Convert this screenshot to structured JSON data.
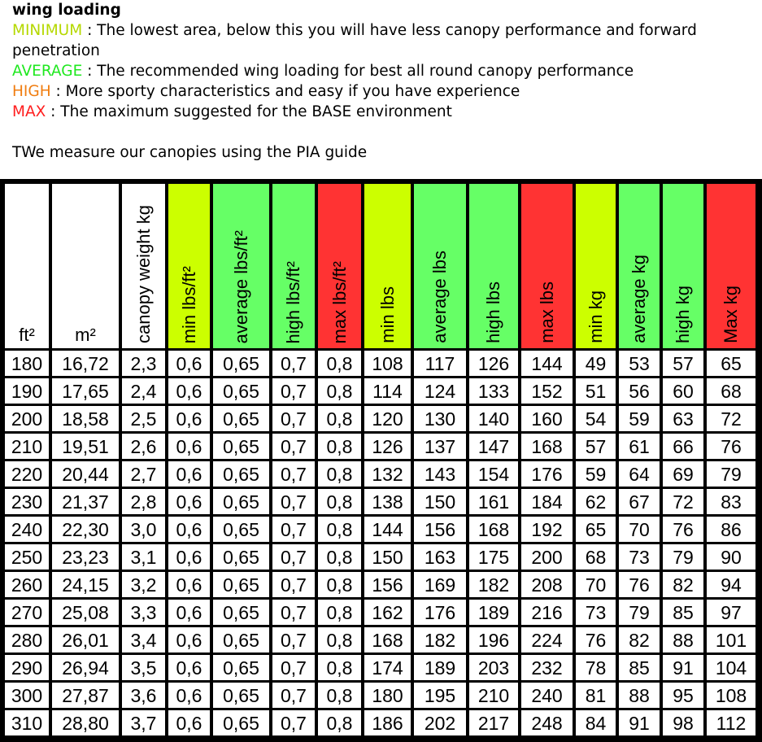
{
  "header": {
    "title": "wing loading",
    "lines": [
      {
        "label": "MINIMUM",
        "text": " : The lowest area, below this you will have less canopy performance and forward penetration"
      },
      {
        "label": "AVERAGE",
        "text": " : The recommended wing loading for best all round canopy performance"
      },
      {
        "label": "HIGH",
        "text": " : More sporty characteristics and easy if you have experience"
      },
      {
        "label": "MAX",
        "text": " : The maximum suggested for the BASE environment"
      }
    ],
    "note": "TWe measure our canopies using the PIA guide"
  },
  "colors": {
    "minimum": "#ccff00",
    "average": "#66ff66",
    "high": "#66ff66",
    "max": "#ff3333",
    "label_minimum": "#b5d800",
    "label_average": "#1fe81f",
    "label_high": "#f07d10",
    "label_max": "#ff1e1e"
  },
  "chart_data": {
    "type": "table",
    "columns": [
      {
        "label": "ft²",
        "bg": "white",
        "orient": "h"
      },
      {
        "label": "m²",
        "bg": "white",
        "orient": "h"
      },
      {
        "label": "canopy weight kg",
        "bg": "white",
        "orient": "v"
      },
      {
        "label": "min lbs/ft²",
        "bg": "yellow",
        "orient": "v"
      },
      {
        "label": "average lbs/ft²",
        "bg": "green",
        "orient": "v"
      },
      {
        "label": "high lbs/ft²",
        "bg": "green",
        "orient": "v"
      },
      {
        "label": "max lbs/ft²",
        "bg": "red",
        "orient": "v"
      },
      {
        "label": "min lbs",
        "bg": "yellow",
        "orient": "v"
      },
      {
        "label": "average lbs",
        "bg": "green",
        "orient": "v"
      },
      {
        "label": "high lbs",
        "bg": "green",
        "orient": "v"
      },
      {
        "label": "max lbs",
        "bg": "red",
        "orient": "v"
      },
      {
        "label": "min kg",
        "bg": "yellow",
        "orient": "v"
      },
      {
        "label": "average kg",
        "bg": "green",
        "orient": "v"
      },
      {
        "label": "high kg",
        "bg": "green",
        "orient": "v"
      },
      {
        "label": "Max kg",
        "bg": "red",
        "orient": "v"
      }
    ],
    "rows": [
      [
        "180",
        "16,72",
        "2,3",
        "0,6",
        "0,65",
        "0,7",
        "0,8",
        "108",
        "117",
        "126",
        "144",
        "49",
        "53",
        "57",
        "65"
      ],
      [
        "190",
        "17,65",
        "2,4",
        "0,6",
        "0,65",
        "0,7",
        "0,8",
        "114",
        "124",
        "133",
        "152",
        "51",
        "56",
        "60",
        "68"
      ],
      [
        "200",
        "18,58",
        "2,5",
        "0,6",
        "0,65",
        "0,7",
        "0,8",
        "120",
        "130",
        "140",
        "160",
        "54",
        "59",
        "63",
        "72"
      ],
      [
        "210",
        "19,51",
        "2,6",
        "0,6",
        "0,65",
        "0,7",
        "0,8",
        "126",
        "137",
        "147",
        "168",
        "57",
        "61",
        "66",
        "76"
      ],
      [
        "220",
        "20,44",
        "2,7",
        "0,6",
        "0,65",
        "0,7",
        "0,8",
        "132",
        "143",
        "154",
        "176",
        "59",
        "64",
        "69",
        "79"
      ],
      [
        "230",
        "21,37",
        "2,8",
        "0,6",
        "0,65",
        "0,7",
        "0,8",
        "138",
        "150",
        "161",
        "184",
        "62",
        "67",
        "72",
        "83"
      ],
      [
        "240",
        "22,30",
        "3,0",
        "0,6",
        "0,65",
        "0,7",
        "0,8",
        "144",
        "156",
        "168",
        "192",
        "65",
        "70",
        "76",
        "86"
      ],
      [
        "250",
        "23,23",
        "3,1",
        "0,6",
        "0,65",
        "0,7",
        "0,8",
        "150",
        "163",
        "175",
        "200",
        "68",
        "73",
        "79",
        "90"
      ],
      [
        "260",
        "24,15",
        "3,2",
        "0,6",
        "0,65",
        "0,7",
        "0,8",
        "156",
        "169",
        "182",
        "208",
        "70",
        "76",
        "82",
        "94"
      ],
      [
        "270",
        "25,08",
        "3,3",
        "0,6",
        "0,65",
        "0,7",
        "0,8",
        "162",
        "176",
        "189",
        "216",
        "73",
        "79",
        "85",
        "97"
      ],
      [
        "280",
        "26,01",
        "3,4",
        "0,6",
        "0,65",
        "0,7",
        "0,8",
        "168",
        "182",
        "196",
        "224",
        "76",
        "82",
        "88",
        "101"
      ],
      [
        "290",
        "26,94",
        "3,5",
        "0,6",
        "0,65",
        "0,7",
        "0,8",
        "174",
        "189",
        "203",
        "232",
        "78",
        "85",
        "91",
        "104"
      ],
      [
        "300",
        "27,87",
        "3,6",
        "0,6",
        "0,65",
        "0,7",
        "0,8",
        "180",
        "195",
        "210",
        "240",
        "81",
        "88",
        "95",
        "108"
      ],
      [
        "310",
        "28,80",
        "3,7",
        "0,6",
        "0,65",
        "0,7",
        "0,8",
        "186",
        "202",
        "217",
        "248",
        "84",
        "91",
        "98",
        "112"
      ]
    ]
  }
}
